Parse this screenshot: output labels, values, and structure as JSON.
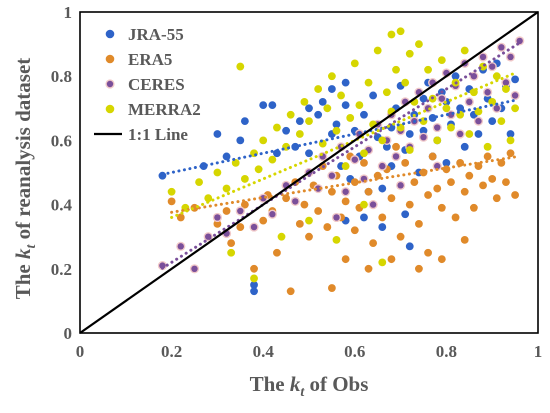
{
  "chart_data": {
    "type": "scatter",
    "xlabel": {
      "prefix": "The ",
      "var": "k",
      "sub": "t",
      "suffix": " of Obs"
    },
    "ylabel": {
      "prefix": "The ",
      "var": "k",
      "sub": "t",
      "suffix": " of reanalysis dataset"
    },
    "xlim": [
      0,
      1
    ],
    "ylim": [
      0,
      1
    ],
    "xticks": [
      "0",
      "0.2",
      "0.4",
      "0.6",
      "0.8",
      "1"
    ],
    "yticks": [
      "0",
      "0.2",
      "0.4",
      "0.6",
      "0.8",
      "1"
    ],
    "grid": false,
    "legend_position": "top-left",
    "reference_line": {
      "name": "1:1 Line",
      "color": "#000000",
      "points": [
        [
          0,
          0
        ],
        [
          1,
          1
        ]
      ]
    },
    "series": [
      {
        "name": "JRA-55",
        "color": "#2E63C8",
        "marker": "circle",
        "trend": {
          "slope": 0.3,
          "intercept": 0.44
        },
        "points": [
          [
            0.18,
            0.49
          ],
          [
            0.27,
            0.52
          ],
          [
            0.3,
            0.62
          ],
          [
            0.32,
            0.55
          ],
          [
            0.35,
            0.6
          ],
          [
            0.36,
            0.66
          ],
          [
            0.38,
            0.15
          ],
          [
            0.38,
            0.13
          ],
          [
            0.4,
            0.71
          ],
          [
            0.42,
            0.71
          ],
          [
            0.43,
            0.56
          ],
          [
            0.45,
            0.63
          ],
          [
            0.47,
            0.58
          ],
          [
            0.48,
            0.66
          ],
          [
            0.5,
            0.56
          ],
          [
            0.5,
            0.7
          ],
          [
            0.52,
            0.68
          ],
          [
            0.53,
            0.72
          ],
          [
            0.55,
            0.62
          ],
          [
            0.55,
            0.76
          ],
          [
            0.56,
            0.65
          ],
          [
            0.57,
            0.52
          ],
          [
            0.58,
            0.71
          ],
          [
            0.58,
            0.78
          ],
          [
            0.59,
            0.48
          ],
          [
            0.6,
            0.63
          ],
          [
            0.61,
            0.55
          ],
          [
            0.62,
            0.68
          ],
          [
            0.63,
            0.44
          ],
          [
            0.64,
            0.74
          ],
          [
            0.65,
            0.61
          ],
          [
            0.66,
            0.45
          ],
          [
            0.67,
            0.58
          ],
          [
            0.68,
            0.64
          ],
          [
            0.68,
            0.52
          ],
          [
            0.69,
            0.7
          ],
          [
            0.7,
            0.77
          ],
          [
            0.71,
            0.57
          ],
          [
            0.71,
            0.37
          ],
          [
            0.72,
            0.62
          ],
          [
            0.73,
            0.68
          ],
          [
            0.74,
            0.5
          ],
          [
            0.75,
            0.73
          ],
          [
            0.75,
            0.63
          ],
          [
            0.76,
            0.78
          ],
          [
            0.77,
            0.55
          ],
          [
            0.77,
            0.67
          ],
          [
            0.78,
            0.6
          ],
          [
            0.79,
            0.75
          ],
          [
            0.8,
            0.72
          ],
          [
            0.8,
            0.53
          ],
          [
            0.81,
            0.65
          ],
          [
            0.82,
            0.8
          ],
          [
            0.83,
            0.7
          ],
          [
            0.84,
            0.58
          ],
          [
            0.85,
            0.76
          ],
          [
            0.86,
            0.68
          ],
          [
            0.87,
            0.62
          ],
          [
            0.88,
            0.82
          ],
          [
            0.89,
            0.73
          ],
          [
            0.9,
            0.66
          ],
          [
            0.91,
            0.84
          ],
          [
            0.92,
            0.7
          ],
          [
            0.93,
            0.77
          ],
          [
            0.94,
            0.62
          ],
          [
            0.95,
            0.79
          ],
          [
            0.62,
            0.36
          ],
          [
            0.66,
            0.33
          ],
          [
            0.72,
            0.27
          ],
          [
            0.58,
            0.35
          ]
        ]
      },
      {
        "name": "ERA5",
        "color": "#E08A2A",
        "marker": "circle",
        "trend": {
          "slope": 0.23,
          "intercept": 0.33
        },
        "points": [
          [
            0.2,
            0.41
          ],
          [
            0.22,
            0.36
          ],
          [
            0.25,
            0.39
          ],
          [
            0.28,
            0.3
          ],
          [
            0.3,
            0.34
          ],
          [
            0.32,
            0.38
          ],
          [
            0.33,
            0.28
          ],
          [
            0.35,
            0.33
          ],
          [
            0.36,
            0.4
          ],
          [
            0.38,
            0.2
          ],
          [
            0.4,
            0.35
          ],
          [
            0.41,
            0.43
          ],
          [
            0.42,
            0.38
          ],
          [
            0.43,
            0.25
          ],
          [
            0.45,
            0.42
          ],
          [
            0.46,
            0.13
          ],
          [
            0.47,
            0.47
          ],
          [
            0.48,
            0.34
          ],
          [
            0.49,
            0.4
          ],
          [
            0.5,
            0.3
          ],
          [
            0.51,
            0.46
          ],
          [
            0.52,
            0.38
          ],
          [
            0.53,
            0.52
          ],
          [
            0.54,
            0.33
          ],
          [
            0.55,
            0.44
          ],
          [
            0.55,
            0.14
          ],
          [
            0.56,
            0.49
          ],
          [
            0.57,
            0.36
          ],
          [
            0.58,
            0.41
          ],
          [
            0.59,
            0.55
          ],
          [
            0.6,
            0.32
          ],
          [
            0.6,
            0.47
          ],
          [
            0.61,
            0.39
          ],
          [
            0.62,
            0.53
          ],
          [
            0.63,
            0.44
          ],
          [
            0.64,
            0.28
          ],
          [
            0.65,
            0.49
          ],
          [
            0.66,
            0.36
          ],
          [
            0.67,
            0.51
          ],
          [
            0.68,
            0.42
          ],
          [
            0.69,
            0.58
          ],
          [
            0.7,
            0.46
          ],
          [
            0.7,
            0.3
          ],
          [
            0.71,
            0.53
          ],
          [
            0.72,
            0.4
          ],
          [
            0.73,
            0.47
          ],
          [
            0.74,
            0.34
          ],
          [
            0.75,
            0.5
          ],
          [
            0.76,
            0.43
          ],
          [
            0.76,
            0.25
          ],
          [
            0.77,
            0.55
          ],
          [
            0.78,
            0.45
          ],
          [
            0.79,
            0.39
          ],
          [
            0.8,
            0.51
          ],
          [
            0.81,
            0.47
          ],
          [
            0.82,
            0.36
          ],
          [
            0.83,
            0.53
          ],
          [
            0.84,
            0.44
          ],
          [
            0.85,
            0.49
          ],
          [
            0.86,
            0.39
          ],
          [
            0.87,
            0.52
          ],
          [
            0.88,
            0.46
          ],
          [
            0.89,
            0.55
          ],
          [
            0.9,
            0.48
          ],
          [
            0.91,
            0.42
          ],
          [
            0.92,
            0.53
          ],
          [
            0.93,
            0.47
          ],
          [
            0.94,
            0.56
          ],
          [
            0.95,
            0.43
          ],
          [
            0.74,
            0.2
          ],
          [
            0.68,
            0.23
          ],
          [
            0.79,
            0.23
          ],
          [
            0.84,
            0.29
          ],
          [
            0.58,
            0.23
          ],
          [
            0.63,
            0.2
          ]
        ]
      },
      {
        "name": "CERES",
        "color": "#7A4F9A",
        "marker": "circle",
        "trend": {
          "slope": 0.9,
          "intercept": 0.04
        },
        "points": [
          [
            0.18,
            0.21
          ],
          [
            0.22,
            0.27
          ],
          [
            0.25,
            0.2
          ],
          [
            0.28,
            0.3
          ],
          [
            0.3,
            0.36
          ],
          [
            0.32,
            0.31
          ],
          [
            0.35,
            0.38
          ],
          [
            0.38,
            0.33
          ],
          [
            0.4,
            0.42
          ],
          [
            0.42,
            0.37
          ],
          [
            0.45,
            0.46
          ],
          [
            0.47,
            0.41
          ],
          [
            0.5,
            0.5
          ],
          [
            0.52,
            0.45
          ],
          [
            0.53,
            0.55
          ],
          [
            0.55,
            0.49
          ],
          [
            0.57,
            0.58
          ],
          [
            0.58,
            0.44
          ],
          [
            0.6,
            0.54
          ],
          [
            0.61,
            0.62
          ],
          [
            0.62,
            0.48
          ],
          [
            0.63,
            0.57
          ],
          [
            0.65,
            0.65
          ],
          [
            0.66,
            0.52
          ],
          [
            0.67,
            0.6
          ],
          [
            0.68,
            0.68
          ],
          [
            0.69,
            0.55
          ],
          [
            0.7,
            0.63
          ],
          [
            0.71,
            0.72
          ],
          [
            0.72,
            0.58
          ],
          [
            0.73,
            0.66
          ],
          [
            0.74,
            0.75
          ],
          [
            0.75,
            0.61
          ],
          [
            0.76,
            0.7
          ],
          [
            0.77,
            0.78
          ],
          [
            0.78,
            0.64
          ],
          [
            0.79,
            0.73
          ],
          [
            0.8,
            0.81
          ],
          [
            0.81,
            0.68
          ],
          [
            0.82,
            0.77
          ],
          [
            0.83,
            0.62
          ],
          [
            0.84,
            0.84
          ],
          [
            0.85,
            0.72
          ],
          [
            0.86,
            0.8
          ],
          [
            0.87,
            0.66
          ],
          [
            0.88,
            0.86
          ],
          [
            0.89,
            0.75
          ],
          [
            0.9,
            0.83
          ],
          [
            0.91,
            0.7
          ],
          [
            0.92,
            0.89
          ],
          [
            0.93,
            0.78
          ],
          [
            0.94,
            0.86
          ],
          [
            0.95,
            0.74
          ],
          [
            0.96,
            0.91
          ],
          [
            0.56,
            0.36
          ],
          [
            0.64,
            0.4
          ],
          [
            0.7,
            0.46
          ],
          [
            0.78,
            0.52
          ]
        ]
      },
      {
        "name": "MERRA2",
        "color": "#D6D600",
        "marker": "circle",
        "trend": {
          "slope": 0.6,
          "intercept": 0.24
        },
        "points": [
          [
            0.2,
            0.44
          ],
          [
            0.23,
            0.39
          ],
          [
            0.26,
            0.47
          ],
          [
            0.28,
            0.42
          ],
          [
            0.3,
            0.5
          ],
          [
            0.32,
            0.45
          ],
          [
            0.34,
            0.53
          ],
          [
            0.35,
            0.83
          ],
          [
            0.36,
            0.48
          ],
          [
            0.38,
            0.56
          ],
          [
            0.39,
            0.51
          ],
          [
            0.4,
            0.6
          ],
          [
            0.42,
            0.54
          ],
          [
            0.43,
            0.64
          ],
          [
            0.45,
            0.58
          ],
          [
            0.46,
            0.68
          ],
          [
            0.48,
            0.62
          ],
          [
            0.49,
            0.72
          ],
          [
            0.5,
            0.66
          ],
          [
            0.52,
            0.76
          ],
          [
            0.53,
            0.59
          ],
          [
            0.54,
            0.7
          ],
          [
            0.55,
            0.8
          ],
          [
            0.56,
            0.63
          ],
          [
            0.57,
            0.74
          ],
          [
            0.58,
            0.52
          ],
          [
            0.59,
            0.67
          ],
          [
            0.6,
            0.84
          ],
          [
            0.61,
            0.71
          ],
          [
            0.62,
            0.56
          ],
          [
            0.63,
            0.78
          ],
          [
            0.64,
            0.65
          ],
          [
            0.65,
            0.88
          ],
          [
            0.66,
            0.6
          ],
          [
            0.67,
            0.75
          ],
          [
            0.68,
            0.93
          ],
          [
            0.68,
            0.69
          ],
          [
            0.69,
            0.82
          ],
          [
            0.7,
            0.94
          ],
          [
            0.7,
            0.64
          ],
          [
            0.71,
            0.78
          ],
          [
            0.72,
            0.87
          ],
          [
            0.72,
            0.57
          ],
          [
            0.73,
            0.72
          ],
          [
            0.74,
            0.9
          ],
          [
            0.75,
            0.66
          ],
          [
            0.76,
            0.82
          ],
          [
            0.77,
            0.73
          ],
          [
            0.78,
            0.6
          ],
          [
            0.79,
            0.85
          ],
          [
            0.8,
            0.7
          ],
          [
            0.81,
            0.64
          ],
          [
            0.82,
            0.78
          ],
          [
            0.83,
            0.68
          ],
          [
            0.84,
            0.88
          ],
          [
            0.85,
            0.62
          ],
          [
            0.86,
            0.75
          ],
          [
            0.87,
            0.69
          ],
          [
            0.88,
            0.83
          ],
          [
            0.89,
            0.58
          ],
          [
            0.9,
            0.72
          ],
          [
            0.91,
            0.8
          ],
          [
            0.92,
            0.66
          ],
          [
            0.93,
            0.76
          ],
          [
            0.94,
            0.6
          ],
          [
            0.95,
            0.7
          ],
          [
            0.38,
            0.17
          ],
          [
            0.33,
            0.25
          ],
          [
            0.44,
            0.3
          ],
          [
            0.5,
            0.35
          ],
          [
            0.56,
            0.29
          ],
          [
            0.62,
            0.4
          ],
          [
            0.66,
            0.22
          ]
        ]
      }
    ]
  }
}
